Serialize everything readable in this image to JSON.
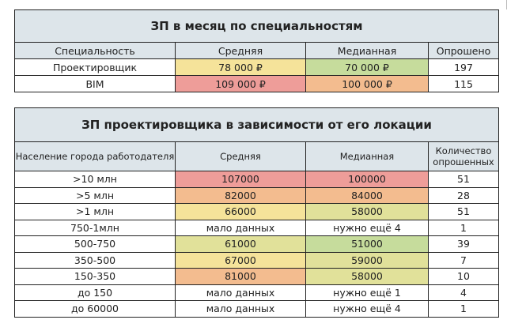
{
  "table1": {
    "title": "ЗП в месяц по специальностям",
    "headers": [
      "Специальность",
      "Средняя",
      "Медианная",
      "Опрошено"
    ],
    "rows": [
      {
        "spec": "Проектировщик",
        "avg": "78 000 ₽",
        "med": "70 000 ₽",
        "count": "197",
        "avg_color": "#f5e39a",
        "med_color": "#c6dc9c"
      },
      {
        "spec": "BIM",
        "avg": "109 000 ₽",
        "med": "100 000 ₽",
        "count": "115",
        "avg_color": "#ee9d99",
        "med_color": "#f3bc8f"
      }
    ]
  },
  "table2": {
    "title": "ЗП проектировщика в зависимости от его локации",
    "headers": [
      "Население города работодателя",
      "Средняя",
      "Медианная",
      "Количество опрошенных"
    ],
    "rows": [
      {
        "pop": ">10 млн",
        "avg": "107000",
        "med": "100000",
        "count": "51",
        "avg_color": "#ee9d99",
        "med_color": "#ee9d99"
      },
      {
        "pop": ">5 млн",
        "avg": "82000",
        "med": "84000",
        "count": "28",
        "avg_color": "#f3bc8f",
        "med_color": "#f3bc8f"
      },
      {
        "pop": ">1 млн",
        "avg": "66000",
        "med": "58000",
        "count": "51",
        "avg_color": "#f5e39a",
        "med_color": "#e1e19a"
      },
      {
        "pop": "750-1млн",
        "avg": "мало данных",
        "med": "нужно ещё 4",
        "count": "1",
        "avg_color": "#ffffff",
        "med_color": "#ffffff"
      },
      {
        "pop": "500-750",
        "avg": "61000",
        "med": "51000",
        "count": "39",
        "avg_color": "#e1e19a",
        "med_color": "#c6dc9c"
      },
      {
        "pop": "350-500",
        "avg": "67000",
        "med": "59000",
        "count": "7",
        "avg_color": "#f5e39a",
        "med_color": "#e1e19a"
      },
      {
        "pop": "150-350",
        "avg": "81000",
        "med": "58000",
        "count": "10",
        "avg_color": "#f3bc8f",
        "med_color": "#e1e19a"
      },
      {
        "pop": "до 150",
        "avg": "мало данных",
        "med": "нужно ещё 1",
        "count": "4",
        "avg_color": "#ffffff",
        "med_color": "#ffffff"
      },
      {
        "pop": "до 60000",
        "avg": "мало данных",
        "med": "нужно ещё 4",
        "count": "1",
        "avg_color": "#ffffff",
        "med_color": "#ffffff"
      }
    ]
  }
}
